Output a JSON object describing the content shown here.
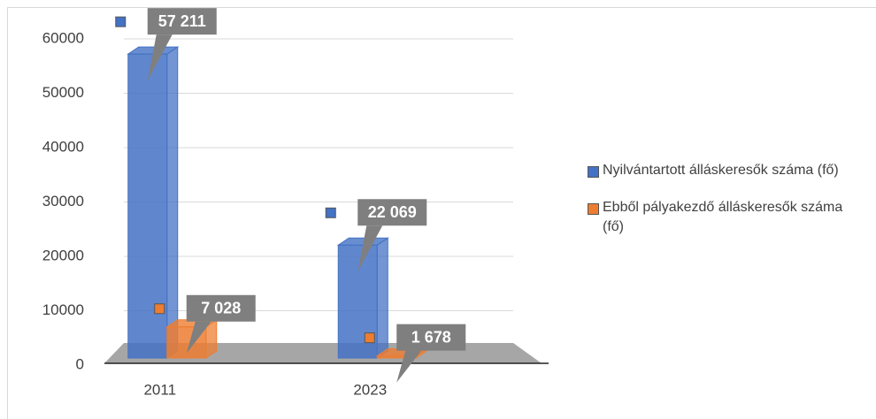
{
  "chart_data": {
    "type": "bar3d",
    "categories": [
      "2011",
      "2023"
    ],
    "series": [
      {
        "name": "Nyilvántartott álláskeresők száma (fő)",
        "color": "#4472c4",
        "values": [
          57211,
          22069
        ],
        "value_labels": [
          "57 211",
          "22 069"
        ]
      },
      {
        "name": "Ebből pályakezdő álláskeresők száma (fő)",
        "color": "#ed7d31",
        "values": [
          7028,
          1678
        ],
        "value_labels": [
          "7 028",
          "1 678"
        ]
      }
    ],
    "ylim": [
      0,
      60000
    ],
    "yticks": [
      0,
      10000,
      20000,
      30000,
      40000,
      50000,
      60000
    ],
    "grid": true,
    "legend": "right"
  }
}
